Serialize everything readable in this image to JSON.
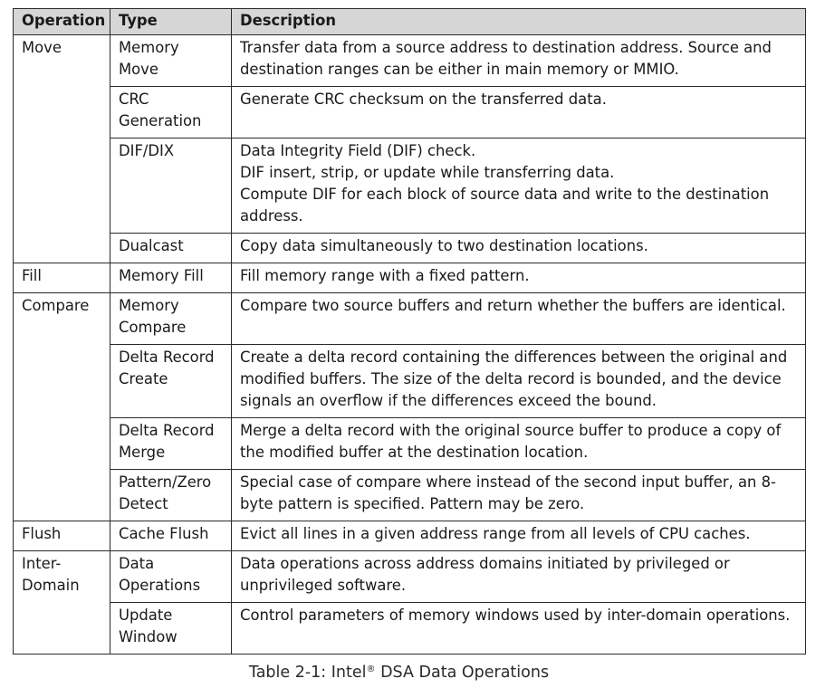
{
  "table": {
    "headers": {
      "operation": "Operation",
      "type": "Type",
      "description": "Description"
    },
    "groups": [
      {
        "operation": "Move",
        "rows": [
          {
            "type": "Memory Move",
            "description": "Transfer data from a source address to destination address. Source and destination ranges can be either in main memory or MMIO."
          },
          {
            "type": "CRC Generation",
            "description": "Generate CRC checksum on the transferred data."
          },
          {
            "type": "DIF/DIX",
            "description_lines": [
              "Data Integrity Field (DIF) check.",
              "DIF insert, strip, or update while transferring data.",
              "Compute DIF for each block of source data and write to the destination address."
            ]
          },
          {
            "type": "Dualcast",
            "description": "Copy data simultaneously to two destination locations."
          }
        ]
      },
      {
        "operation": "Fill",
        "rows": [
          {
            "type": "Memory Fill",
            "description": "Fill memory range with a fixed pattern."
          }
        ]
      },
      {
        "operation": "Compare",
        "rows": [
          {
            "type": "Memory Compare",
            "description": "Compare two source buffers and return whether the buffers are identical."
          },
          {
            "type": "Delta Record Create",
            "description": "Create a delta record containing the differences between the original and modified buffers. The size of the delta record is bounded, and the device signals an overflow if the differences exceed the bound."
          },
          {
            "type": "Delta Record Merge",
            "description": "Merge a delta record with the original source buffer to produce a copy of the modified buffer at the destination location."
          },
          {
            "type": "Pattern/Zero Detect",
            "description": "Special case of compare where instead of the second input buffer, an 8-byte pattern is specified. Pattern may be zero."
          }
        ]
      },
      {
        "operation": "Flush",
        "rows": [
          {
            "type": "Cache Flush",
            "description": "Evict all lines in a given address range from all levels of CPU caches."
          }
        ]
      },
      {
        "operation": "Inter-Domain",
        "rows": [
          {
            "type": "Data Operations",
            "description": "Data operations across address domains initiated by privileged or unprivileged software."
          },
          {
            "type": "Update Window",
            "description": "Control parameters of memory windows used by inter-domain operations."
          }
        ]
      }
    ]
  },
  "caption": {
    "prefix": "Table 2-1: Intel",
    "mark": "®",
    "suffix": " DSA Data Operations"
  }
}
